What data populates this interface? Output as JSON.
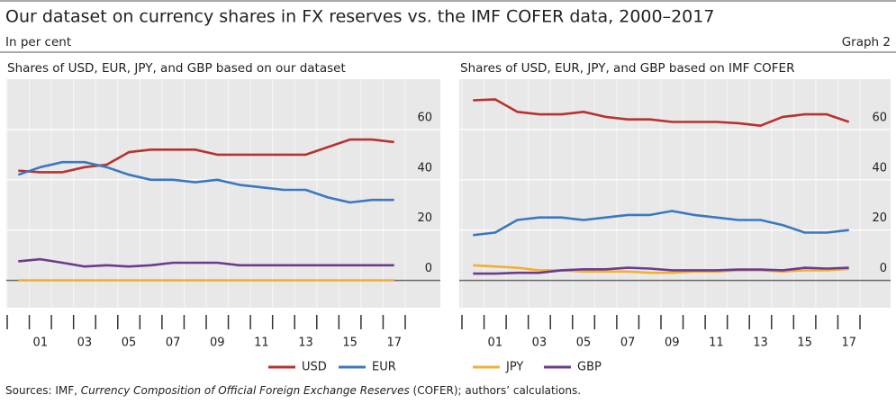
{
  "header": {
    "title": "Our dataset on currency shares in FX reserves vs. the IMF COFER data, 2000–2017",
    "unit": "In per cent",
    "graph": "Graph 2"
  },
  "footer": {
    "sources_prefix": "Sources: IMF, ",
    "sources_italic": "Currency Composition of Official Foreign Exchange Reserves",
    "sources_suffix": " (COFER); authors’ calculations."
  },
  "chart_data": [
    {
      "type": "line",
      "title": "Shares of USD, EUR, JPY, and GBP based on our dataset",
      "categories": [
        null,
        "01",
        null,
        "03",
        null,
        "05",
        null,
        "07",
        null,
        "09",
        null,
        "11",
        null,
        "13",
        null,
        "15",
        null,
        "17"
      ],
      "ylim": [
        -3,
        80
      ],
      "yticks": [
        0,
        20,
        40,
        60
      ],
      "grid": true,
      "series": [
        {
          "name": "USD",
          "color": "#b8322f",
          "values": [
            43.6,
            43,
            43,
            45,
            46,
            51,
            52,
            52,
            52,
            50,
            50,
            50,
            50,
            50,
            53,
            56,
            56,
            55
          ]
        },
        {
          "name": "EUR",
          "color": "#3b78c0",
          "values": [
            42,
            45,
            47,
            47,
            45,
            42,
            40,
            40,
            39,
            40,
            38,
            37,
            36,
            36,
            33,
            31,
            32,
            32
          ]
        },
        {
          "name": "JPY",
          "color": "#f0b030",
          "values": [
            0,
            0,
            0,
            0,
            0,
            0,
            0,
            0,
            0,
            0,
            0,
            0,
            0,
            0,
            0,
            0,
            0,
            0
          ]
        },
        {
          "name": "GBP",
          "color": "#6b3c8e",
          "values": [
            7.6,
            8.4,
            7,
            5.5,
            6,
            5.5,
            6,
            7,
            7,
            7,
            6,
            6,
            6,
            6,
            6,
            6,
            6,
            6
          ]
        }
      ]
    },
    {
      "type": "line",
      "title": "Shares of USD, EUR, JPY, and GBP based on IMF COFER",
      "categories": [
        null,
        "01",
        null,
        "03",
        null,
        "05",
        null,
        "07",
        null,
        "09",
        null,
        "11",
        null,
        "13",
        null,
        "15",
        null,
        "17"
      ],
      "ylim": [
        -3,
        80
      ],
      "yticks": [
        0,
        20,
        40,
        60
      ],
      "grid": true,
      "series": [
        {
          "name": "USD",
          "color": "#b8322f",
          "values": [
            71.6,
            72,
            67,
            66,
            66,
            67,
            65,
            64,
            64,
            63,
            63,
            63,
            62.5,
            61.5,
            65,
            66,
            66,
            63
          ]
        },
        {
          "name": "EUR",
          "color": "#3b78c0",
          "values": [
            18,
            19,
            24,
            25,
            25,
            24,
            25,
            26,
            26,
            27.6,
            26,
            25,
            24,
            24,
            22,
            19,
            19,
            20
          ]
        },
        {
          "name": "JPY",
          "color": "#f0b030",
          "values": [
            6,
            5.5,
            5,
            4,
            4,
            3.5,
            3.5,
            3.5,
            3,
            3,
            3.5,
            3.5,
            4,
            4,
            3.5,
            4,
            4,
            4.5
          ]
        },
        {
          "name": "GBP",
          "color": "#6b3c8e",
          "values": [
            2.7,
            2.7,
            3,
            3,
            4,
            4.4,
            4.4,
            5,
            4.7,
            4,
            4,
            4,
            4.3,
            4.3,
            4,
            5,
            4.7,
            5
          ]
        }
      ]
    }
  ]
}
